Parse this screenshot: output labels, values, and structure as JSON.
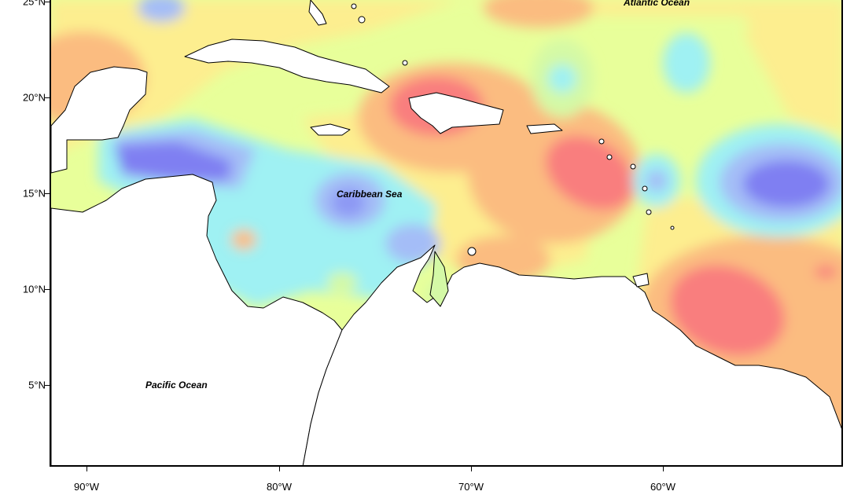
{
  "map": {
    "labels": {
      "atlantic": "Atlantic Ocean",
      "caribbean": "Caribbean Sea",
      "pacific": "Pacific Ocean"
    },
    "lat_ticks": [
      "25°N",
      "20°N",
      "15°N",
      "10°N",
      "5°N"
    ],
    "lon_ticks": [
      "90°W",
      "80°W",
      "70°W",
      "60°W"
    ],
    "colors": {
      "land": "#ffffff",
      "coastline": "#000000",
      "ocean_base": "#e8ff9a",
      "dark_blue": "#7f7ff2",
      "blue": "#a4bdf7",
      "cyan": "#9ff1f3",
      "light_green": "#d4f9a6",
      "yellow": "#fdee8f",
      "orange": "#fbbc80",
      "red": "#f97e7e"
    }
  }
}
